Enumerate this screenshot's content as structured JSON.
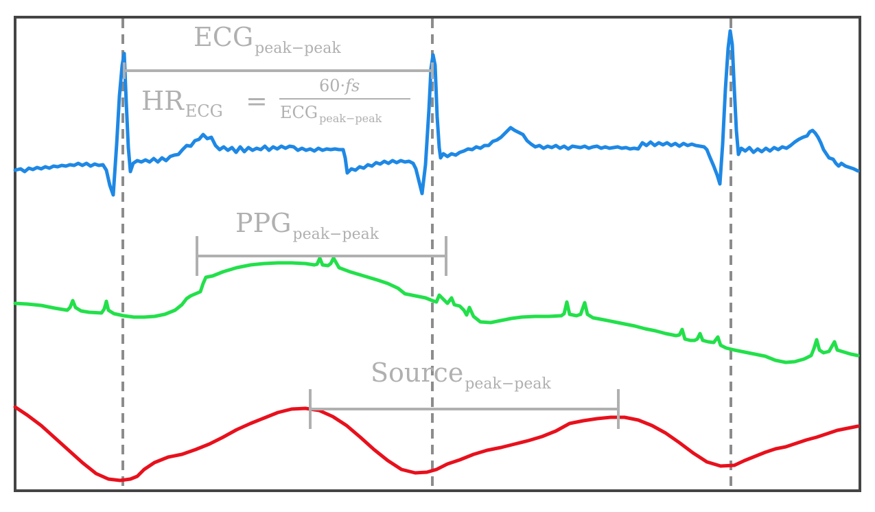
{
  "colors": {
    "ecg": "#1e88e5",
    "ppg": "#22e04a",
    "source": "#e8101c",
    "annotation": "#b0b0b0",
    "beat_marker": "#8c8c8c",
    "frame": "#444444"
  },
  "labels": {
    "ecg_interval": {
      "base": "ECG",
      "sub": "peak−peak"
    },
    "ppg_interval": {
      "base": "PPG",
      "sub": "peak−peak"
    },
    "source_interval": {
      "base": "Source",
      "sub": "peak−peak"
    },
    "hr_formula": {
      "lhs_base": "HR",
      "lhs_sub": "ECG",
      "equals": "=",
      "numerator": "60·",
      "numerator_var": "fs",
      "denominator_base": "ECG",
      "denominator_sub": "peak−peak"
    }
  },
  "signals": [
    "ecg",
    "ppg",
    "source"
  ]
}
